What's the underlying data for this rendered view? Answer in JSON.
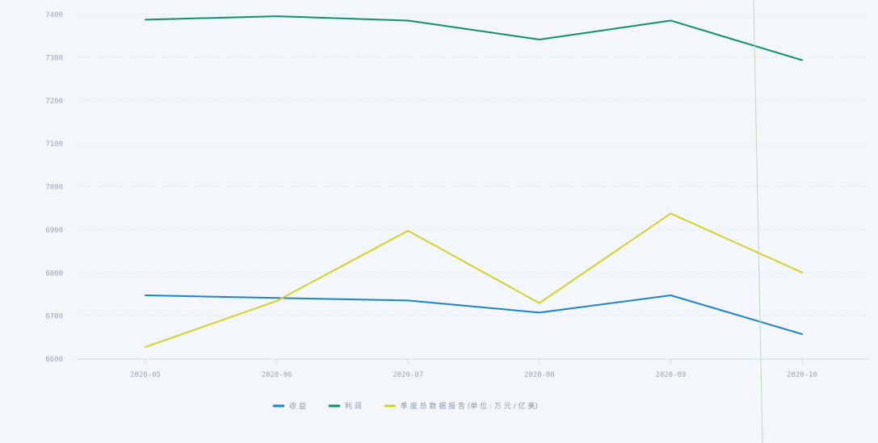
{
  "colors": {
    "background": "#f3f6fa",
    "grid": "#dde6f0",
    "axis": "#cdd9e6",
    "tick_text": "#9aa6b4",
    "vertical_marker": "#b9dcb9"
  },
  "chart_data": {
    "type": "line",
    "title": "",
    "xlabel": "",
    "ylabel": "",
    "categories": [
      "2020-05",
      "2020-06",
      "2020-07",
      "2020-08",
      "2020-09",
      "2020-10"
    ],
    "y_ticks": [
      6600,
      6700,
      6800,
      6900,
      7000,
      7100,
      7200,
      7300,
      7400
    ],
    "y_tick_labels": [
      "6600",
      "6700",
      "6800",
      "6900",
      "7000",
      "7100",
      "7200",
      "7300",
      "7400"
    ],
    "ylim": [
      6600,
      7400
    ],
    "grid": true,
    "legend_position": "bottom-center",
    "series": [
      {
        "key": "blue",
        "name": "收 益",
        "color": "#1b84c9",
        "values": [
          6748,
          6742,
          6736,
          6708,
          6748,
          6658
        ]
      },
      {
        "key": "green",
        "name": "利 润",
        "color": "#0f8f70",
        "values": [
          7388,
          7396,
          7386,
          7342,
          7386,
          7294
        ]
      },
      {
        "key": "yellow",
        "name": "季 度 总 数 据 报 告 (单 位 : 万 元 / 亿 美)",
        "color": "#d4d12a",
        "values": [
          6628,
          6735,
          6898,
          6730,
          6938,
          6801
        ]
      }
    ]
  }
}
